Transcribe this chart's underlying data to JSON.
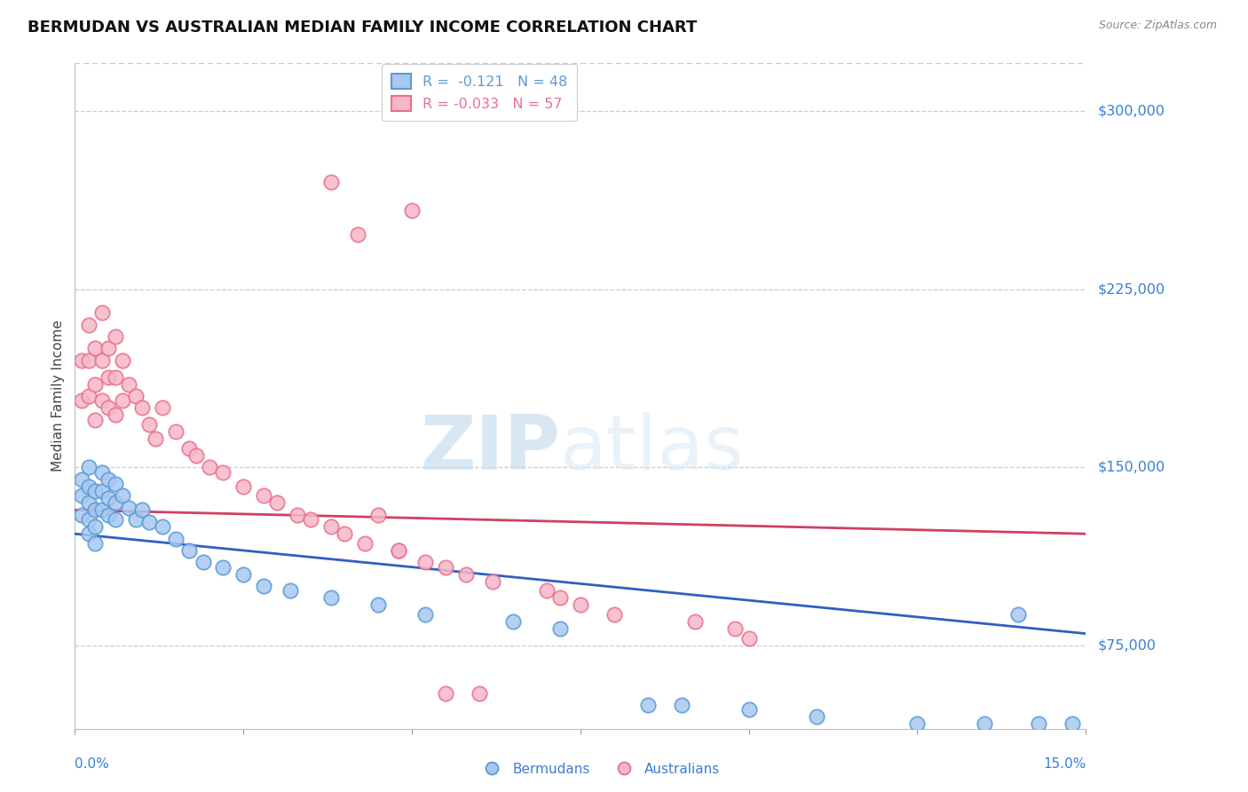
{
  "title": "BERMUDAN VS AUSTRALIAN MEDIAN FAMILY INCOME CORRELATION CHART",
  "source": "Source: ZipAtlas.com",
  "ylabel": "Median Family Income",
  "xlim": [
    0.0,
    0.15
  ],
  "ylim": [
    40000,
    320000
  ],
  "yticks": [
    75000,
    150000,
    225000,
    300000
  ],
  "ytick_labels": [
    "$75,000",
    "$150,000",
    "$225,000",
    "$300,000"
  ],
  "watermark_zip": "ZIP",
  "watermark_atlas": "atlas",
  "background_color": "#ffffff",
  "grid_color": "#cccccc",
  "blue_color": "#5b9bd5",
  "pink_color": "#e87090",
  "legend_entries": [
    {
      "label_r": "R =  -0.121",
      "label_n": "N = 48",
      "color": "#5b9bd5"
    },
    {
      "label_r": "R = -0.033",
      "label_n": "N = 57",
      "color": "#e87090"
    }
  ],
  "legend_footer": [
    "Bermudans",
    "Australians"
  ],
  "bermudans_x": [
    0.001,
    0.001,
    0.001,
    0.002,
    0.002,
    0.002,
    0.002,
    0.002,
    0.003,
    0.003,
    0.003,
    0.003,
    0.004,
    0.004,
    0.004,
    0.005,
    0.005,
    0.005,
    0.006,
    0.006,
    0.006,
    0.007,
    0.008,
    0.009,
    0.01,
    0.011,
    0.013,
    0.015,
    0.017,
    0.019,
    0.022,
    0.025,
    0.028,
    0.032,
    0.038,
    0.045,
    0.052,
    0.065,
    0.072,
    0.085,
    0.09,
    0.1,
    0.11,
    0.125,
    0.135,
    0.14,
    0.143,
    0.148
  ],
  "bermudans_y": [
    145000,
    138000,
    130000,
    150000,
    142000,
    135000,
    128000,
    122000,
    140000,
    132000,
    125000,
    118000,
    148000,
    140000,
    132000,
    145000,
    137000,
    130000,
    143000,
    135000,
    128000,
    138000,
    133000,
    128000,
    132000,
    127000,
    125000,
    120000,
    115000,
    110000,
    108000,
    105000,
    100000,
    98000,
    95000,
    92000,
    88000,
    85000,
    82000,
    50000,
    50000,
    48000,
    45000,
    42000,
    42000,
    88000,
    42000,
    42000
  ],
  "australians_x": [
    0.001,
    0.001,
    0.002,
    0.002,
    0.002,
    0.003,
    0.003,
    0.003,
    0.004,
    0.004,
    0.004,
    0.005,
    0.005,
    0.005,
    0.006,
    0.006,
    0.006,
    0.007,
    0.007,
    0.008,
    0.009,
    0.01,
    0.011,
    0.012,
    0.013,
    0.015,
    0.017,
    0.018,
    0.02,
    0.022,
    0.025,
    0.028,
    0.03,
    0.033,
    0.035,
    0.038,
    0.04,
    0.043,
    0.048,
    0.052,
    0.055,
    0.058,
    0.062,
    0.07,
    0.072,
    0.075,
    0.08,
    0.092,
    0.098,
    0.1,
    0.038,
    0.05,
    0.042,
    0.045,
    0.048,
    0.055,
    0.06
  ],
  "australians_y": [
    195000,
    178000,
    210000,
    195000,
    180000,
    200000,
    185000,
    170000,
    215000,
    195000,
    178000,
    200000,
    188000,
    175000,
    205000,
    188000,
    172000,
    195000,
    178000,
    185000,
    180000,
    175000,
    168000,
    162000,
    175000,
    165000,
    158000,
    155000,
    150000,
    148000,
    142000,
    138000,
    135000,
    130000,
    128000,
    125000,
    122000,
    118000,
    115000,
    110000,
    108000,
    105000,
    102000,
    98000,
    95000,
    92000,
    88000,
    85000,
    82000,
    78000,
    270000,
    258000,
    248000,
    130000,
    115000,
    55000,
    55000
  ],
  "blue_line_x": [
    0.0,
    0.15
  ],
  "blue_line_y": [
    122000,
    80000
  ],
  "pink_line_x": [
    0.0,
    0.15
  ],
  "pink_line_y": [
    132000,
    122000
  ]
}
